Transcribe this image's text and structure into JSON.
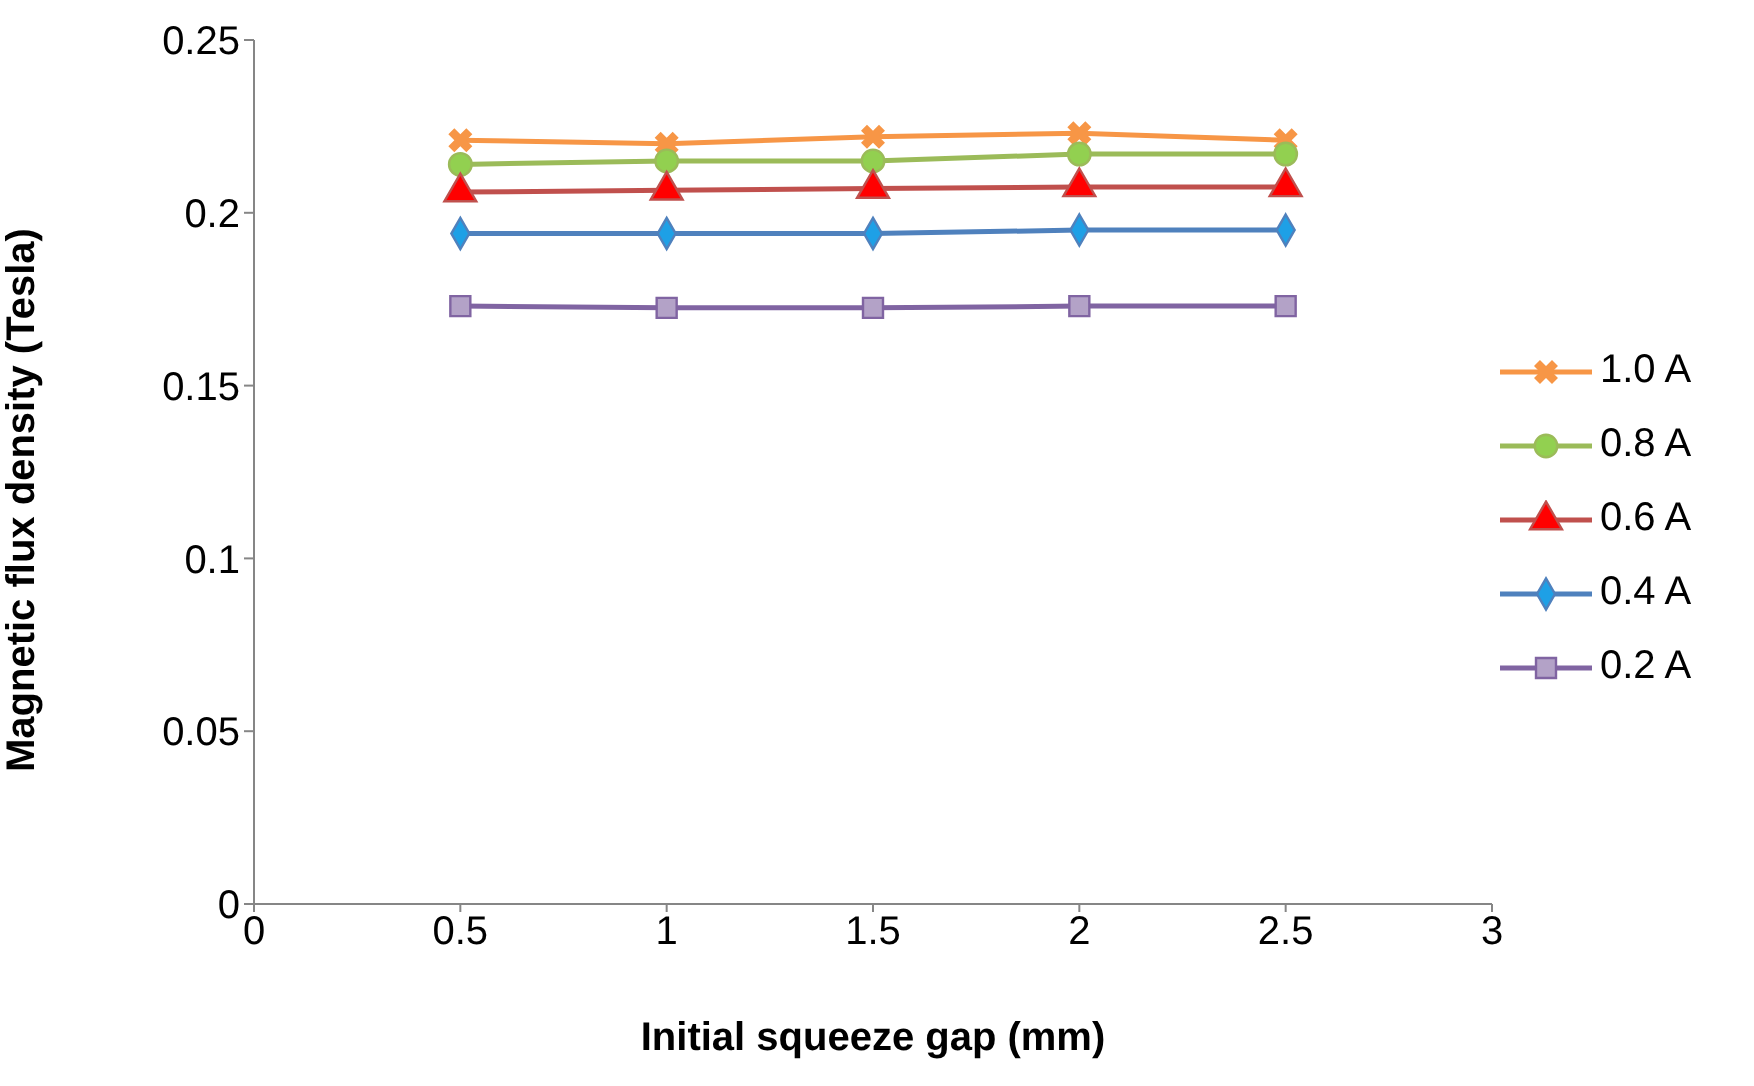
{
  "chart_data": {
    "type": "line",
    "xlabel": "Initial squeeze gap (mm)",
    "ylabel": "Magnetic flux density (Tesla)",
    "x": [
      0.5,
      1,
      1.5,
      2,
      2.5
    ],
    "xlim": [
      0,
      3
    ],
    "xticks": [
      0,
      0.5,
      1,
      1.5,
      2,
      2.5,
      3
    ],
    "ylim": [
      0,
      0.25
    ],
    "yticks": [
      0,
      0.05,
      0.1,
      0.15,
      0.2,
      0.25
    ],
    "grid": false,
    "legend": "right",
    "series": [
      {
        "name": "1.0 A",
        "color": "#f79646",
        "marker": "cross",
        "values": [
          0.221,
          0.22,
          0.222,
          0.223,
          0.221
        ]
      },
      {
        "name": "0.8 A",
        "color": "#9bbb59",
        "marker": "circle",
        "values": [
          0.214,
          0.215,
          0.215,
          0.217,
          0.217
        ]
      },
      {
        "name": "0.6 A",
        "color": "#c0504d",
        "marker": "triangle",
        "values": [
          0.206,
          0.2065,
          0.207,
          0.2075,
          0.2075
        ]
      },
      {
        "name": "0.4 A",
        "color": "#4f81bd",
        "marker": "diamond",
        "values": [
          0.194,
          0.194,
          0.194,
          0.195,
          0.195
        ]
      },
      {
        "name": "0.2 A",
        "color": "#8064a2",
        "marker": "square",
        "values": [
          0.173,
          0.1725,
          0.1725,
          0.173,
          0.173
        ]
      }
    ]
  }
}
